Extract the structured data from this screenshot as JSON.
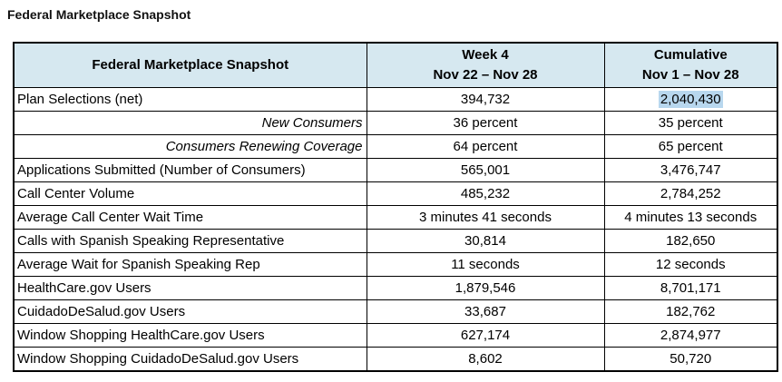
{
  "page_title": "Federal Marketplace Snapshot",
  "colors": {
    "header_bg": "#d6e8f0",
    "selection_highlight_bg": "#b8d7ee",
    "border": "#000000",
    "page_bg": "#ffffff"
  },
  "table": {
    "header": {
      "label_col": "Federal Marketplace Snapshot",
      "week_col_line1": "Week 4",
      "week_col_line2": "Nov 22 – Nov 28",
      "cumulative_col_line1": "Cumulative",
      "cumulative_col_line2": "Nov 1 – Nov 28"
    },
    "rows": [
      {
        "label": "Plan Selections (net)",
        "week": "394,732",
        "cumulative": "2,040,430",
        "label_style": "normal",
        "cumulative_selected": true
      },
      {
        "label": "New Consumers",
        "week": "36 percent",
        "cumulative": "35 percent",
        "label_style": "italic-right",
        "cumulative_selected": false
      },
      {
        "label": "Consumers Renewing Coverage",
        "week": "64 percent",
        "cumulative": "65 percent",
        "label_style": "italic-right",
        "cumulative_selected": false
      },
      {
        "label": "Applications Submitted (Number of Consumers)",
        "week": "565,001",
        "cumulative": "3,476,747",
        "label_style": "normal",
        "cumulative_selected": false
      },
      {
        "label": "Call Center Volume",
        "week": "485,232",
        "cumulative": "2,784,252",
        "label_style": "normal",
        "cumulative_selected": false
      },
      {
        "label": "Average Call Center Wait Time",
        "week": "3 minutes 41 seconds",
        "cumulative": "4 minutes 13 seconds",
        "label_style": "normal",
        "cumulative_selected": false
      },
      {
        "label": "Calls with Spanish Speaking Representative",
        "week": "30,814",
        "cumulative": "182,650",
        "label_style": "normal",
        "cumulative_selected": false
      },
      {
        "label": "Average Wait for Spanish Speaking Rep",
        "week": "11 seconds",
        "cumulative": "12 seconds",
        "label_style": "normal",
        "cumulative_selected": false
      },
      {
        "label": "HealthCare.gov Users",
        "week": "1,879,546",
        "cumulative": "8,701,171",
        "label_style": "normal",
        "cumulative_selected": false
      },
      {
        "label": "CuidadoDeSalud.gov Users",
        "week": "33,687",
        "cumulative": "182,762",
        "label_style": "normal",
        "cumulative_selected": false
      },
      {
        "label": "Window Shopping HealthCare.gov Users",
        "week": "627,174",
        "cumulative": "2,874,977",
        "label_style": "normal",
        "cumulative_selected": false
      },
      {
        "label": "Window Shopping CuidadoDeSalud.gov Users",
        "week": "8,602",
        "cumulative": "50,720",
        "label_style": "normal",
        "cumulative_selected": false
      }
    ]
  }
}
